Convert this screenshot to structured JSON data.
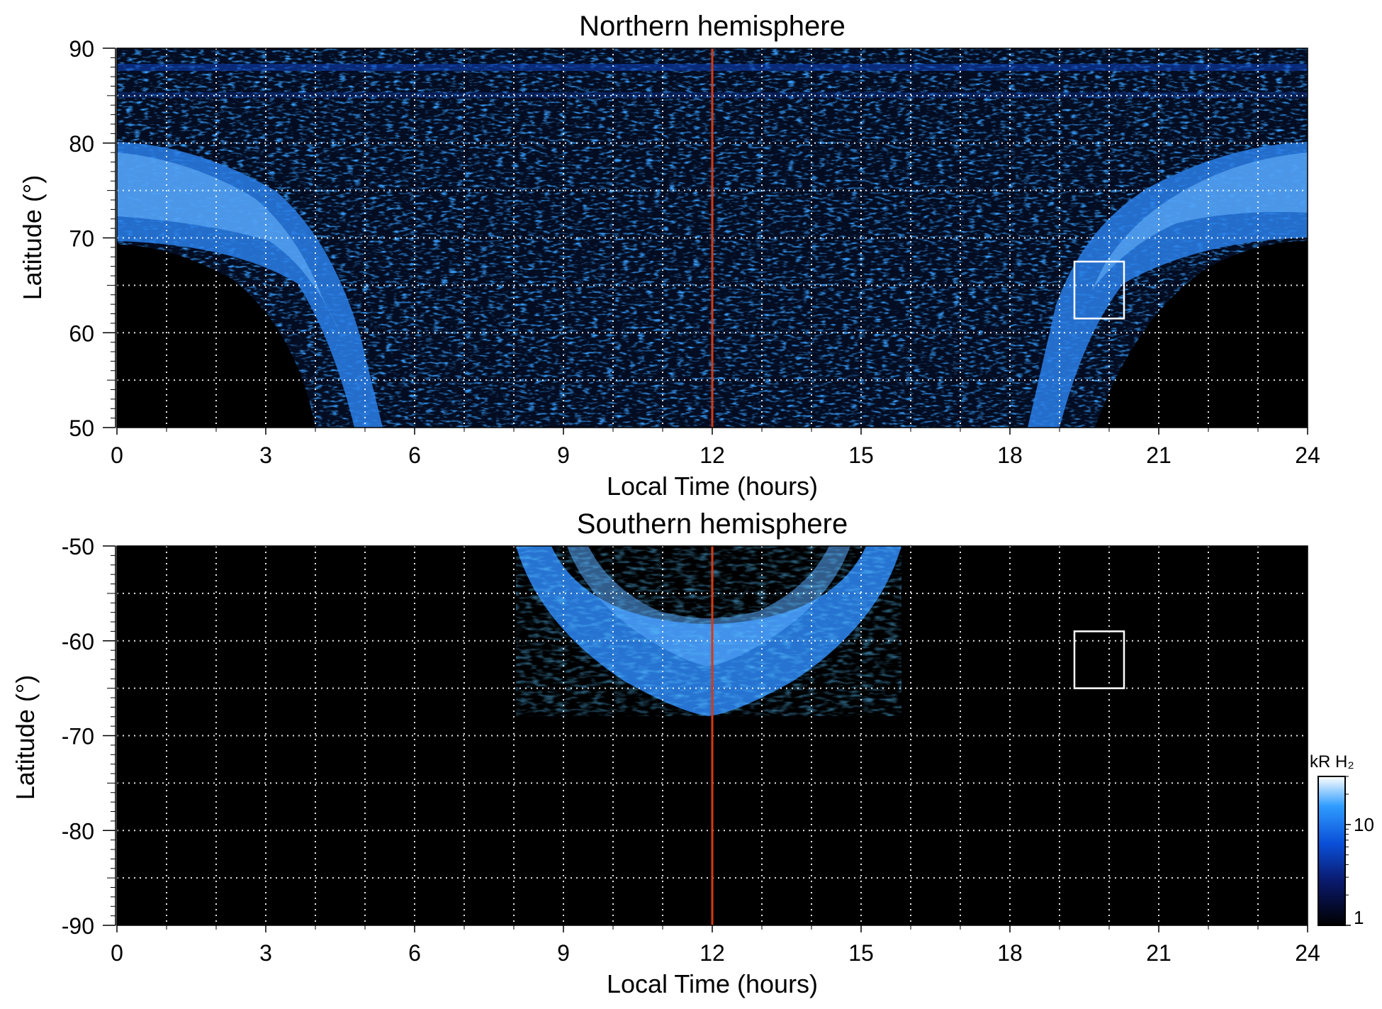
{
  "chart_data": [
    {
      "type": "heatmap",
      "title": "Northern hemisphere",
      "xlabel": "Local Time (hours)",
      "ylabel": "Latitude (°)",
      "xlim": [
        0,
        24
      ],
      "ylim": [
        50,
        90
      ],
      "x_ticks": [
        "0",
        "3",
        "6",
        "9",
        "12",
        "15",
        "18",
        "21",
        "24"
      ],
      "y_ticks": [
        "90",
        "80",
        "70",
        "60",
        "50"
      ],
      "grid": true,
      "grid_x_step": 1,
      "grid_y_step": 5,
      "reference_line_local_time": 12,
      "reference_line_color": "#d63a12",
      "box": {
        "lt_range": [
          19.3,
          20.3
        ],
        "lat_range": [
          61.5,
          67.5
        ]
      },
      "oval": {
        "description_points": [
          {
            "local_time": 0,
            "lat_min": 69.5,
            "lat_max": 80.5
          },
          {
            "local_time": 3,
            "lat_min": 62,
            "lat_max": 75
          },
          {
            "local_time": 4,
            "lat_min": 50,
            "lat_max": 68
          },
          {
            "local_time": 5,
            "lat_min": 50,
            "lat_max": 55
          },
          {
            "local_time": 19,
            "lat_min": 50,
            "lat_max": 65
          },
          {
            "local_time": 20.5,
            "lat_min": 58,
            "lat_max": 73
          },
          {
            "local_time": 24,
            "lat_min": 70,
            "lat_max": 80.5
          }
        ]
      }
    },
    {
      "type": "heatmap",
      "title": "Southern hemisphere",
      "xlabel": "Local Time (hours)",
      "ylabel": "Latitude (°)",
      "xlim": [
        0,
        24
      ],
      "ylim": [
        -90,
        -50
      ],
      "x_ticks": [
        "0",
        "3",
        "6",
        "9",
        "12",
        "15",
        "18",
        "21",
        "24"
      ],
      "y_ticks": [
        "-50",
        "-60",
        "-70",
        "-80",
        "-90"
      ],
      "grid": true,
      "grid_x_step": 1,
      "grid_y_step": 5,
      "reference_line_local_time": 12,
      "reference_line_color": "#d63a12",
      "box": {
        "lt_range": [
          19.3,
          20.3
        ],
        "lat_range": [
          -65,
          -59
        ]
      },
      "oval": {
        "center_local_time": 12,
        "local_time_range": [
          8,
          16
        ],
        "outer_boundary_lat_at_noon": -68,
        "inner_boundary_lat_at_noon": -57
      }
    }
  ],
  "colorbar": {
    "label": "kR H₂",
    "ticks": [
      "1",
      "10"
    ],
    "scale": "log",
    "range": [
      1,
      30
    ],
    "colors": [
      "#000000",
      "#0a1a6e",
      "#0a4fd8",
      "#2f9cff",
      "#ffffff"
    ]
  }
}
